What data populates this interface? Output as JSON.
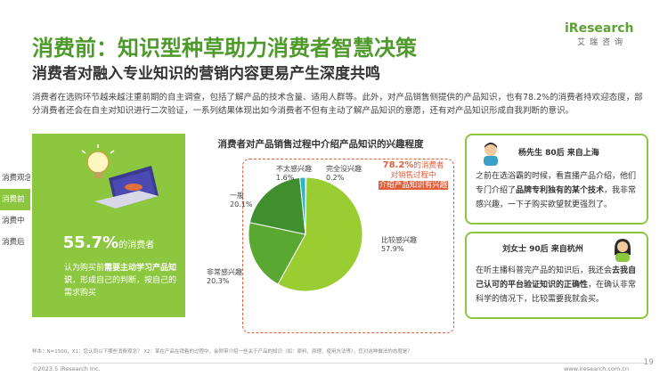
{
  "header": {
    "title": "消费前：知识型种草助力消费者智慧决策",
    "subtitle": "消费者对融入专业知识的营销内容更易产生深度共鸣",
    "logo_brand": "iResearch",
    "logo_cn": "艾瑞咨询"
  },
  "intro": "消费者在选购环节越来越注重前期的自主调查，包括了解产品的技术含量、适用人群等。此外，对产品销售侧提供的产品知识，也有78.2%的消费者持欢迎态度，部分消费者还会在自主对知识进行二次验证，一系列结果体现出如今消费者不但有主动了解产品知识的意愿，还有对产品知识形成自我判断的意识。",
  "tabs": [
    {
      "label": "消费观念",
      "active": false
    },
    {
      "label": "消费前",
      "active": true
    },
    {
      "label": "消费中",
      "active": false
    },
    {
      "label": "消费后",
      "active": false
    }
  ],
  "panel": {
    "stat_value": "55.7%",
    "stat_unit": "的消费者",
    "desc_prefix": "认为购买前",
    "desc_bold": "需要主动学习产品知识",
    "desc_rest": "，形成自己的判断，按自己的需求购买"
  },
  "chart_data": {
    "type": "pie",
    "title": "消费者对产品销售过程中介绍产品知识的兴趣程度",
    "categories": [
      "比较感兴趣",
      "非常感兴趣",
      "一般",
      "不太感兴趣",
      "完全没兴趣"
    ],
    "values": [
      57.9,
      20.3,
      20.1,
      1.6,
      0.2
    ],
    "colors": [
      "#9acd32",
      "#5aa832",
      "#3f8f2e",
      "#29b6c8",
      "#1a5a8a"
    ],
    "labels_pct": [
      "57.9%",
      "20.3%",
      "20.1%",
      "1.6%",
      "0.2%"
    ]
  },
  "callout": {
    "pct": "78.2%",
    "line1": "的消费者",
    "line2": "对销售过程中",
    "line3": "介绍产品知识有兴趣"
  },
  "quotes": [
    {
      "name": "杨先生 80后 来自上海",
      "text_a": "之前在选浴霸的时候，看直播产品介绍，他们专门介绍了",
      "text_bold": "品牌专利独有的某个技术",
      "text_b": "，我非常感兴趣，一下子购买欲望就更强烈了。"
    },
    {
      "name": "刘女士 90后 来自杭州",
      "text_a": "在听主播科普完产品的知识后，我还会",
      "text_bold": "去我自己认可的平台验证知识的正确性",
      "text_b": "，在确认非常科学的情况下，比较需要我就会买。"
    }
  ],
  "footnote": "样本：N=1500，X1：您认同以下哪些消费观念？ X2：某在产品在销售的过程中，会附带介绍一些关于产品的知识（如：原料、原理、使用方法等），您对这种做法的态度是？",
  "footer": {
    "copyright": "©2023.5 iResearch Inc.",
    "site": "www.iresearch.com.cn",
    "page": "19"
  }
}
